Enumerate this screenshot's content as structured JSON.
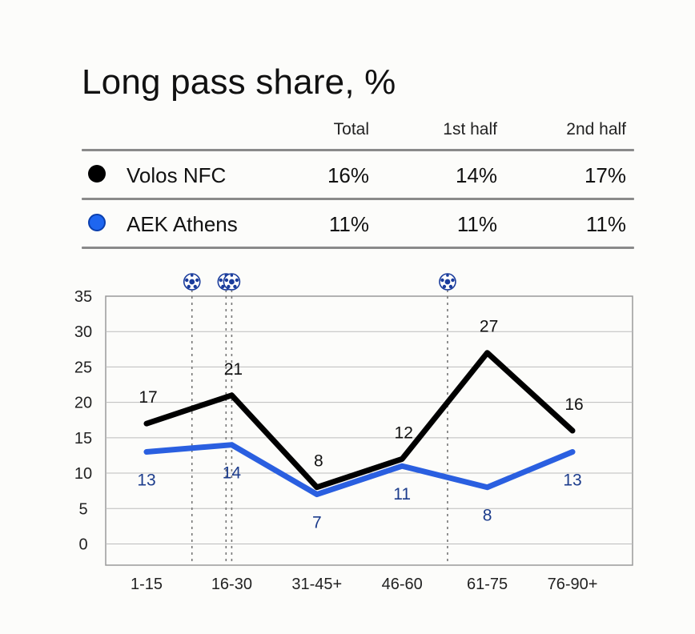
{
  "title": "Long pass share, %",
  "table": {
    "headers": [
      "Total",
      "1st half",
      "2nd half"
    ],
    "rows": [
      {
        "team": "Volos NFC",
        "color": "#000000",
        "total": "16%",
        "first_half": "14%",
        "second_half": "17%"
      },
      {
        "team": "AEK Athens",
        "color": "#1e66f0",
        "total": "11%",
        "first_half": "11%",
        "second_half": "11%"
      }
    ]
  },
  "chart_data": {
    "type": "line",
    "categories": [
      "1-15",
      "16-30",
      "31-45+",
      "46-60",
      "61-75",
      "76-90+"
    ],
    "series": [
      {
        "team": "Volos NFC",
        "color": "#000000",
        "label_color": "#111111",
        "values": [
          17,
          21,
          8,
          12,
          27,
          16
        ]
      },
      {
        "team": "AEK Athens",
        "color": "#2a5fe0",
        "label_color": "#1c3c8c",
        "values": [
          13,
          14,
          7,
          11,
          8,
          13
        ]
      }
    ],
    "y_ticks": [
      0,
      5,
      10,
      15,
      20,
      25,
      30,
      35
    ],
    "ylim": [
      -3,
      35
    ],
    "grid": true,
    "goal_markers_icon": "soccer-ball-icon",
    "goal_markers_minutes": [
      16,
      22,
      23,
      61
    ]
  }
}
